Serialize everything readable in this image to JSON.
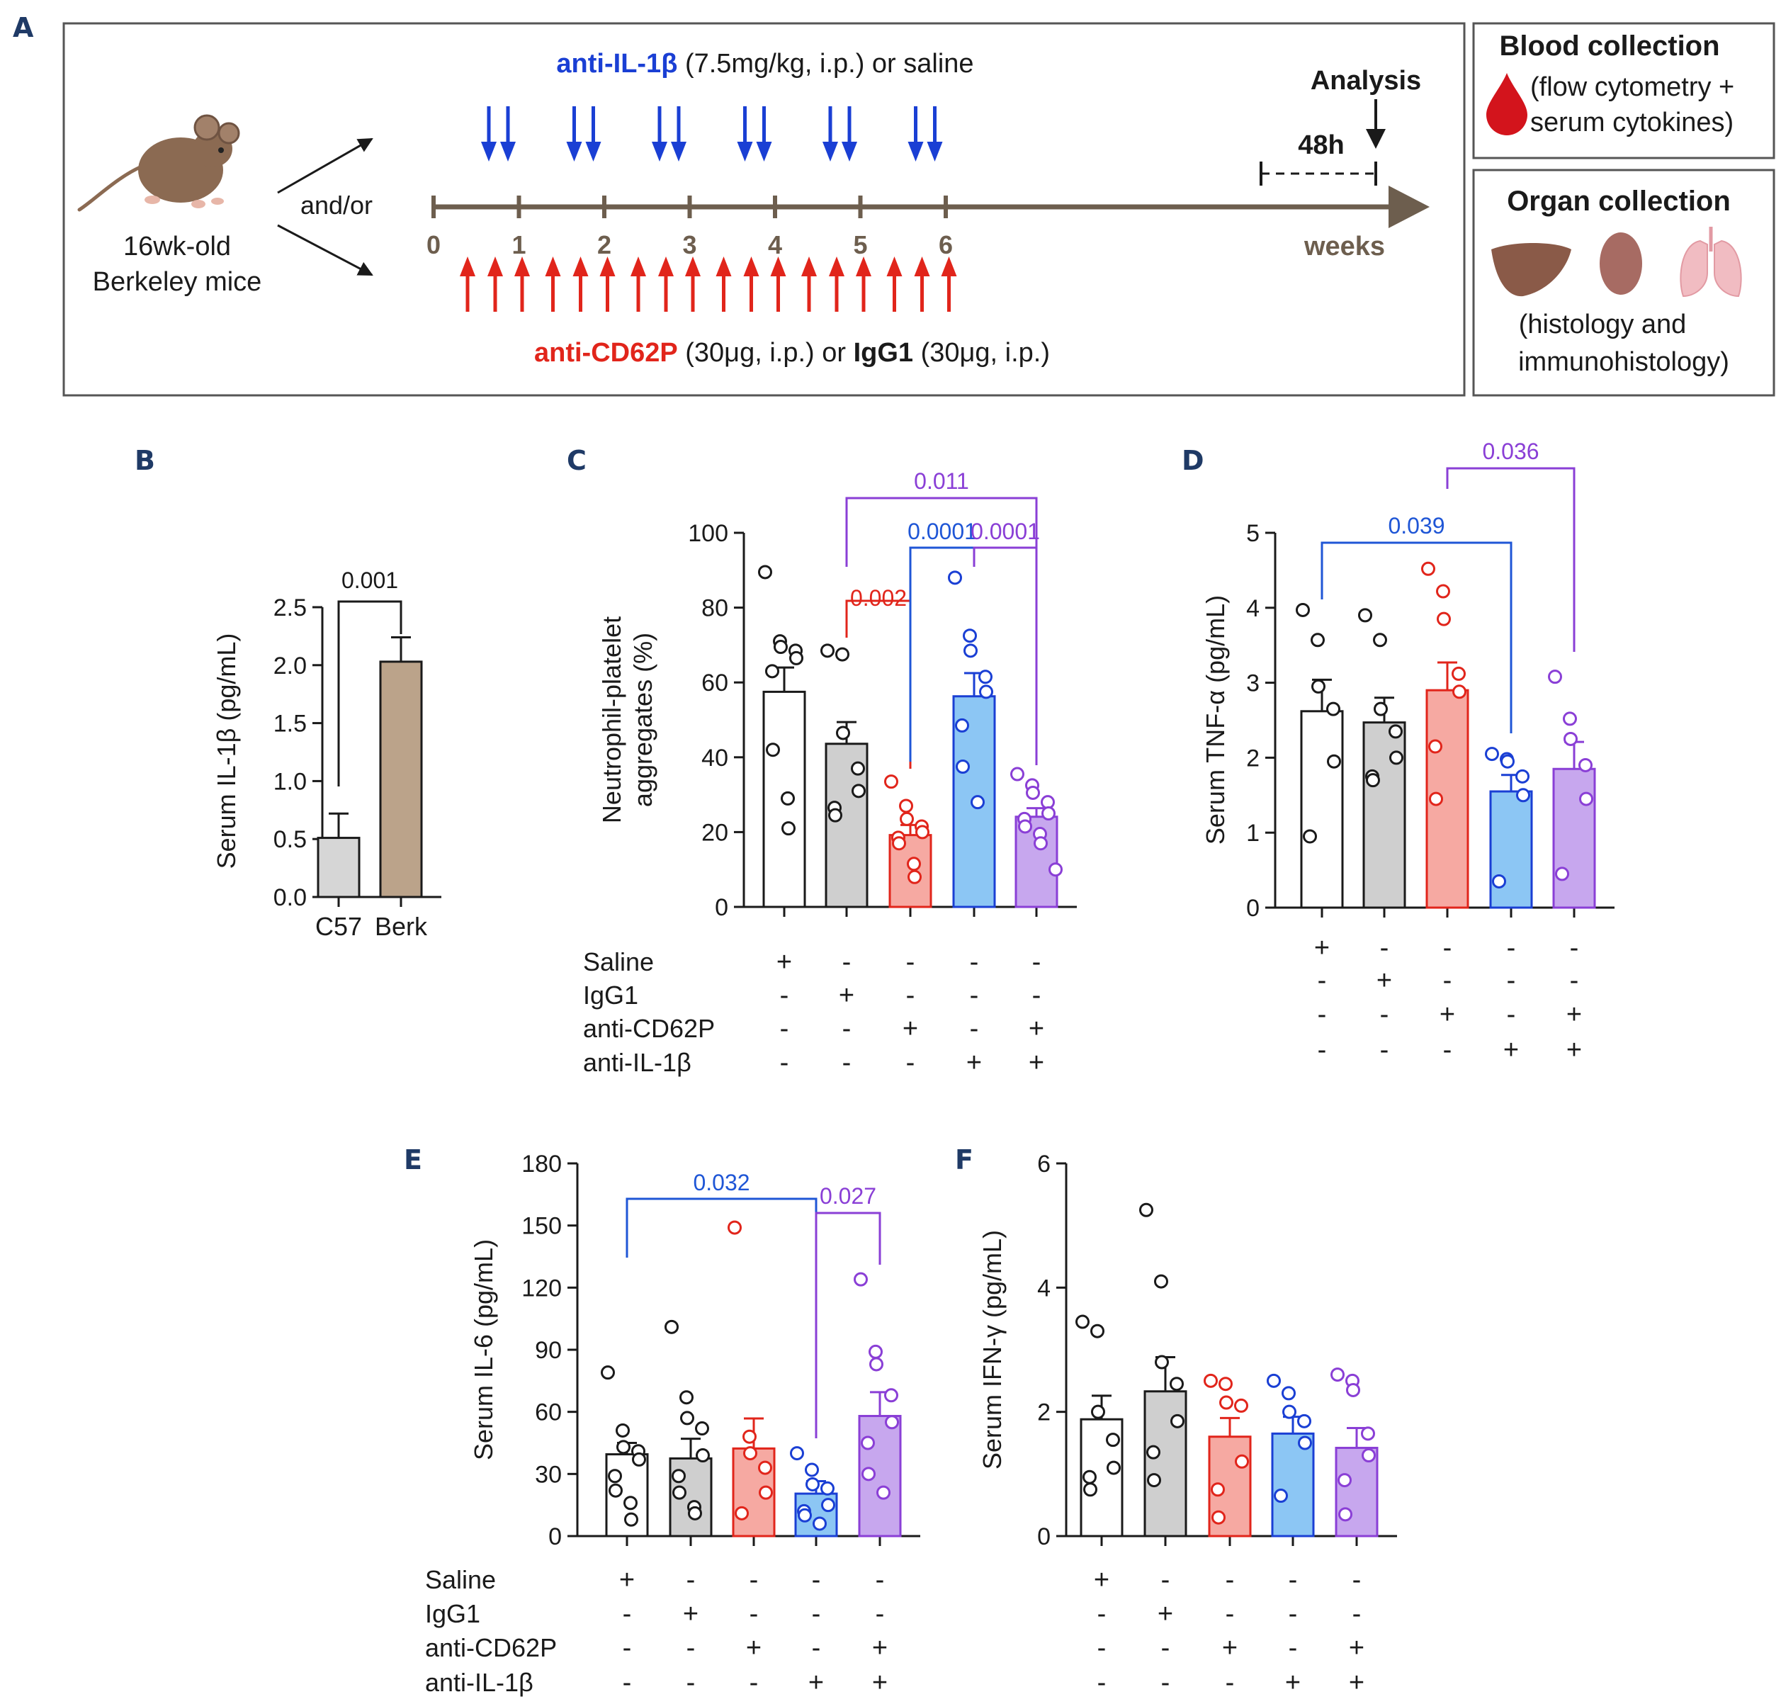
{
  "colors": {
    "black": "#1a1a1a",
    "white_bar": "#ffffff",
    "grey_bar": "#cfcfcf",
    "red_bar": "#f6a9a2",
    "blue_bar": "#8cc6f4",
    "purple_bar": "#c7a7ee",
    "red": "#e1251b",
    "blue": "#1a3fd4",
    "blue_stat": "#1f56d6",
    "purple": "#8a3fd6",
    "navy_letter": "#1f3a66",
    "timeline": "#6d5e4e",
    "c57": "#d6d6d6",
    "berk": "#bba38a",
    "blood": "#d3141c",
    "liver": "#8a5a48",
    "kidney": "#a76b63",
    "lung": "#f1bcc2",
    "mouse": "#8b6a52"
  },
  "panel_a": {
    "letter": "A",
    "mouse_label": [
      "16wk-old",
      "Berkeley mice"
    ],
    "andor": "and/or",
    "top_label_bold": "anti-IL-1β",
    "top_label_rest": " (7.5mg/kg, i.p.) or saline",
    "bottom_label_red": "anti-CD62P",
    "bottom_label_mid": " (30μg, i.p.) or ",
    "bottom_label_bold": "IgG1",
    "bottom_label_end": " (30μg, i.p.)",
    "week_ticks": [
      "0",
      "1",
      "2",
      "3",
      "4",
      "5",
      "6"
    ],
    "weeks_label": "weeks",
    "analysis_label": "Analysis",
    "interval_label": "48h",
    "blood_title": "Blood collection",
    "blood_text": [
      "(flow cytometry +",
      "serum cytokines)"
    ],
    "organ_title": "Organ collection",
    "organ_text": [
      "(histology and",
      "immunohistology)"
    ]
  },
  "treatment_labels": [
    "Saline",
    "IgG1",
    "anti-CD62P",
    "anti-IL-1β"
  ],
  "treatment_signs": [
    [
      "+",
      "-",
      "-",
      "-",
      "-"
    ],
    [
      "-",
      "+",
      "-",
      "-",
      "-"
    ],
    [
      "-",
      "-",
      "+",
      "-",
      "+"
    ],
    [
      "-",
      "-",
      "-",
      "+",
      "+"
    ]
  ],
  "chart_data": [
    {
      "panel": "B",
      "type": "bar",
      "categories": [
        "C57",
        "Berk"
      ],
      "values": [
        0.51,
        2.03
      ],
      "errors": [
        0.21,
        0.21
      ],
      "ylabel": "Serum IL-1β (pg/mL)",
      "ylim": [
        0,
        2.5
      ],
      "yticks": [
        "0.0",
        "0.5",
        "1.0",
        "1.5",
        "2.0",
        "2.5"
      ],
      "comparisons": [
        {
          "from": 0,
          "to": 1,
          "label": "0.001",
          "color": "black"
        }
      ]
    },
    {
      "panel": "C",
      "type": "bar",
      "categories": [
        "Saline",
        "IgG1",
        "anti-CD62P",
        "anti-IL-1β",
        "anti-CD62P + anti-IL-1β"
      ],
      "values": [
        57.5,
        43.6,
        19.2,
        56.3,
        24.1
      ],
      "errors": [
        6.5,
        5.8,
        2.7,
        6.2,
        2.3
      ],
      "points": [
        [
          89.5,
          71,
          69.5,
          68.5,
          66.5,
          63,
          42,
          29,
          21
        ],
        [
          68.5,
          67.5,
          46.5,
          37,
          31,
          26.5,
          24.5
        ],
        [
          33.5,
          27,
          23.5,
          21.5,
          20,
          18.5,
          17,
          11.5,
          8
        ],
        [
          88,
          72.5,
          68.5,
          61.5,
          57.5,
          48.5,
          37.5,
          28
        ],
        [
          35.5,
          32.5,
          30.5,
          28,
          25,
          23.5,
          21.5,
          19.5,
          17,
          10
        ]
      ],
      "ylabel": "Neutrophil-platelet aggregates (%)",
      "ylabel_lines": [
        "Neutrophil-platelet",
        "aggregates (%)"
      ],
      "ylim": [
        0,
        100
      ],
      "yticks": [
        "0",
        "20",
        "40",
        "60",
        "80",
        "100"
      ],
      "comparisons": [
        {
          "from": 1,
          "to": 2,
          "label": "0.002",
          "color": "red"
        },
        {
          "from": 2,
          "to": 3,
          "label": "0.0001",
          "color": "blue"
        },
        {
          "from": 3,
          "to": 4,
          "label": "0.0001",
          "color": "purple"
        },
        {
          "from": 1,
          "to": 4,
          "label": "0.011",
          "color": "purple"
        }
      ]
    },
    {
      "panel": "D",
      "type": "bar",
      "categories": [
        "Saline",
        "IgG1",
        "anti-CD62P",
        "anti-IL-1β",
        "anti-CD62P + anti-IL-1β"
      ],
      "values": [
        2.62,
        2.47,
        2.9,
        1.55,
        1.85
      ],
      "errors": [
        0.42,
        0.33,
        0.37,
        0.22,
        0.36
      ],
      "points": [
        [
          3.97,
          3.57,
          2.95,
          2.65,
          1.95,
          0.95
        ],
        [
          3.9,
          3.57,
          2.65,
          2.35,
          2.0,
          1.75,
          1.7
        ],
        [
          4.52,
          4.22,
          3.85,
          3.12,
          2.88,
          2.15,
          1.45
        ],
        [
          2.05,
          1.98,
          1.95,
          1.75,
          1.5,
          0.35
        ],
        [
          3.08,
          2.52,
          2.25,
          1.9,
          1.45,
          0.45
        ]
      ],
      "ylabel": "Serum TNF-α (pg/mL)",
      "ylim": [
        0,
        5
      ],
      "yticks": [
        "0",
        "1",
        "2",
        "3",
        "4",
        "5"
      ],
      "comparisons": [
        {
          "from": 0,
          "to": 3,
          "label": "0.039",
          "color": "blue"
        },
        {
          "from": 2,
          "to": 4,
          "label": "0.036",
          "color": "purple"
        }
      ]
    },
    {
      "panel": "E",
      "type": "bar",
      "categories": [
        "Saline",
        "IgG1",
        "anti-CD62P",
        "anti-IL-1β",
        "anti-CD62P + anti-IL-1β"
      ],
      "values": [
        39.5,
        37.5,
        42.3,
        20.5,
        58
      ],
      "errors": [
        5.5,
        9.5,
        14.5,
        6,
        11.5
      ],
      "points": [
        [
          79,
          51,
          43,
          41,
          37,
          29,
          22,
          16,
          8
        ],
        [
          101,
          67,
          57,
          52,
          39,
          29,
          21,
          14,
          11
        ],
        [
          149,
          48,
          40,
          33,
          21,
          11
        ],
        [
          40,
          32,
          25,
          23,
          15,
          12,
          10,
          6
        ],
        [
          124,
          89,
          83,
          68,
          55,
          45,
          30,
          21
        ]
      ],
      "ylabel": "Serum IL-6 (pg/mL)",
      "ylim": [
        0,
        180
      ],
      "yticks": [
        "0",
        "30",
        "60",
        "90",
        "120",
        "150",
        "180"
      ],
      "comparisons": [
        {
          "from": 0,
          "to": 3,
          "label": "0.032",
          "color": "blue"
        },
        {
          "from": 3,
          "to": 4,
          "label": "0.027",
          "color": "purple"
        }
      ]
    },
    {
      "panel": "F",
      "type": "bar",
      "categories": [
        "Saline",
        "IgG1",
        "anti-CD62P",
        "anti-IL-1β",
        "anti-CD62P + anti-IL-1β"
      ],
      "values": [
        1.88,
        2.33,
        1.6,
        1.65,
        1.42
      ],
      "errors": [
        0.38,
        0.55,
        0.3,
        0.27,
        0.32
      ],
      "points": [
        [
          3.45,
          3.3,
          2.0,
          1.55,
          1.1,
          0.95,
          0.75
        ],
        [
          5.25,
          4.1,
          2.8,
          2.45,
          1.85,
          1.35,
          0.9
        ],
        [
          2.5,
          2.45,
          2.15,
          2.1,
          1.2,
          0.75,
          0.3
        ],
        [
          2.5,
          2.3,
          2.0,
          1.85,
          1.5,
          0.65
        ],
        [
          2.6,
          2.5,
          2.35,
          1.65,
          1.3,
          0.9,
          0.35
        ]
      ],
      "ylabel": "Serum IFN-γ (pg/mL)",
      "ylim": [
        0,
        6
      ],
      "yticks": [
        "0",
        "2",
        "4",
        "6"
      ],
      "comparisons": []
    }
  ]
}
